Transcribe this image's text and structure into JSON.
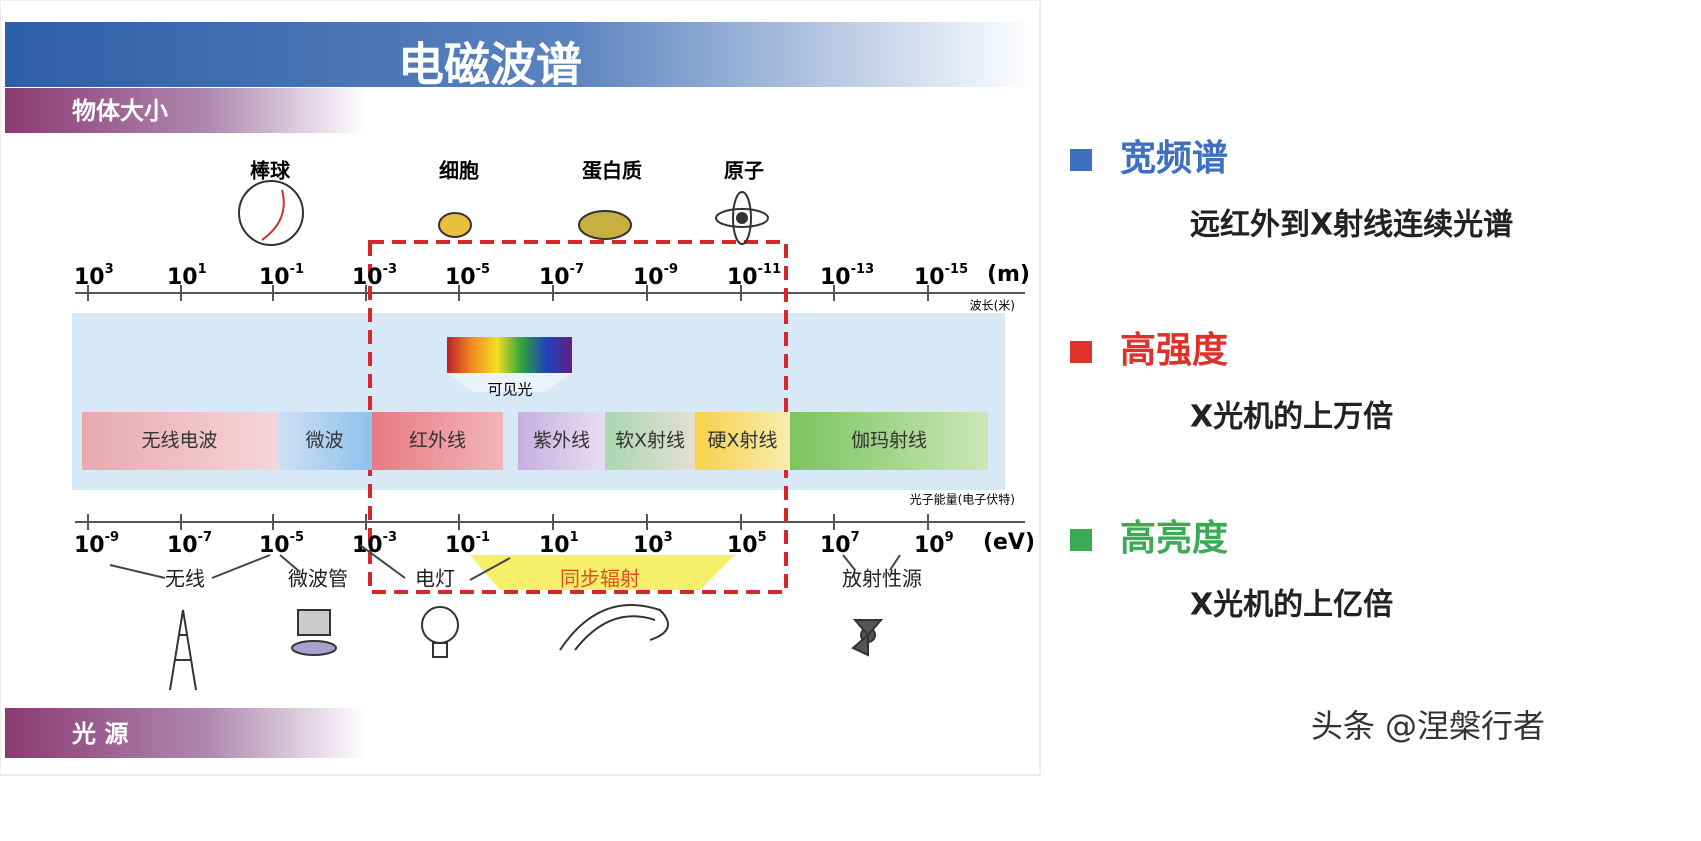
{
  "slide": {
    "title": "电磁波谱",
    "top_band": "物体大小",
    "bottom_band": "光 源",
    "objects": [
      "棒球",
      "细胞",
      "蛋白质",
      "原子"
    ],
    "wavelength": {
      "base": "10",
      "exponents": [
        "3",
        "1",
        "-1",
        "-3",
        "-5",
        "-7",
        "-9",
        "-11",
        "-13",
        "-15"
      ],
      "unit": "(m)",
      "axis_label": "波长(米)"
    },
    "energy": {
      "base": "10",
      "exponents": [
        "-9",
        "-7",
        "-5",
        "-3",
        "-1",
        "1",
        "3",
        "5",
        "7",
        "9"
      ],
      "unit": "(eV)",
      "axis_label": "光子能量(电子伏特)"
    },
    "visible": "可见光",
    "bands": [
      "无线电波",
      "微波",
      "红外线",
      "紫外线",
      "软X射线",
      "硬X射线",
      "伽玛射线"
    ],
    "sources": [
      "无线",
      "微波管",
      "电灯",
      "同步辐射",
      "放射性源"
    ]
  },
  "features": [
    {
      "title": "宽频谱",
      "text": "远红外到X射线连续光谱"
    },
    {
      "title": "高强度",
      "text": "X光机的上万倍"
    },
    {
      "title": "高亮度",
      "text": "X光机的上亿倍"
    }
  ],
  "watermark": "头条 @涅槃行者"
}
